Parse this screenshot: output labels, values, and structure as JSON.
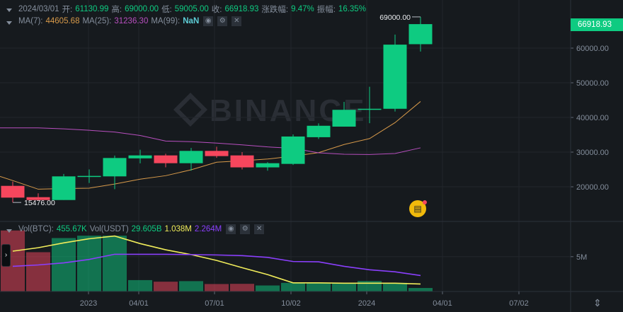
{
  "header": {
    "date": "2024/03/01",
    "open_label": "开:",
    "open": "61130.99",
    "high_label": "高:",
    "high": "69000.00",
    "low_label": "低:",
    "low": "59005.00",
    "close_label": "收:",
    "close": "66918.93",
    "change_label": "涨跌幅:",
    "change": "9.47%",
    "amplitude_label": "振幅:",
    "amplitude": "16.35%"
  },
  "ma_legend": {
    "ma7_label": "MA(7):",
    "ma7": "44605.68",
    "ma25_label": "MA(25):",
    "ma25": "31236.30",
    "ma99_label": "MA(99):",
    "ma99": "NaN"
  },
  "vol_legend": {
    "label": "Vol(BTC):",
    "btc": "455.67K",
    "usdt_label": "Vol(USDT)",
    "usdt": "29.605B",
    "ma1": "1.038M",
    "ma2": "2.264M"
  },
  "icons": [
    "eye-icon",
    "gear-icon",
    "close-icon",
    "chevron-right-icon",
    "scale-icon",
    "news-badge-icon"
  ],
  "last_price_tag": "66918.93",
  "max_label": "69000.00",
  "min_label": "15476.00",
  "watermark": "BINANCE",
  "colors": {
    "up": "#0ecb81",
    "down": "#f6465d",
    "ma7": "#d89a4a",
    "ma25": "#b84fbf",
    "ma99": "#5ecdd6",
    "vol_ma1": "#f0ec5a",
    "vol_ma2": "#8a3ffc",
    "background": "#161a1e"
  },
  "chart_data": [
    {
      "type": "candlestick",
      "interval": "monthly",
      "y_ticks": [
        "20000.00",
        "30000.00",
        "40000.00",
        "50000.00",
        "60000.00"
      ],
      "ylim": [
        15000,
        70000
      ],
      "grid": true,
      "candles": [
        {
          "o": 20265,
          "h": 21500,
          "l": 15476,
          "c": 16870
        },
        {
          "o": 17000,
          "h": 18100,
          "l": 16000,
          "c": 16180
        },
        {
          "o": 16180,
          "h": 23700,
          "l": 16200,
          "c": 23000
        },
        {
          "o": 23000,
          "h": 25000,
          "l": 21100,
          "c": 23130
        },
        {
          "o": 23000,
          "h": 29000,
          "l": 19300,
          "c": 28300
        },
        {
          "o": 28200,
          "h": 30700,
          "l": 26750,
          "c": 29050
        },
        {
          "o": 29050,
          "h": 29550,
          "l": 25600,
          "c": 26800
        },
        {
          "o": 26800,
          "h": 31200,
          "l": 24650,
          "c": 30350
        },
        {
          "o": 30350,
          "h": 31550,
          "l": 28350,
          "c": 28850
        },
        {
          "o": 29050,
          "h": 30000,
          "l": 25000,
          "c": 25600
        },
        {
          "o": 25600,
          "h": 27100,
          "l": 24650,
          "c": 26800
        },
        {
          "o": 26600,
          "h": 35100,
          "l": 26300,
          "c": 34500
        },
        {
          "o": 34300,
          "h": 38300,
          "l": 33800,
          "c": 37600
        },
        {
          "o": 37350,
          "h": 44500,
          "l": 37350,
          "c": 42200
        },
        {
          "o": 42300,
          "h": 48850,
          "l": 38350,
          "c": 42500
        },
        {
          "o": 42500,
          "h": 63900,
          "l": 41700,
          "c": 61000
        },
        {
          "o": 61130.99,
          "h": 69000,
          "l": 59005,
          "c": 66918.93
        }
      ],
      "series": [
        {
          "name": "MA(7)",
          "values": [
            21800,
            19300,
            19500,
            19600,
            20800,
            22200,
            23200,
            24900,
            27100,
            27500,
            28000,
            28850,
            29850,
            32200,
            33900,
            38500,
            44605.68
          ]
        },
        {
          "name": "MA(25)",
          "values": [
            37000,
            37000,
            36700,
            36300,
            35800,
            34800,
            33200,
            33000,
            32600,
            32100,
            31500,
            31100,
            29800,
            29400,
            29300,
            29600,
            31236.3
          ]
        }
      ]
    },
    {
      "type": "bar",
      "name": "Vol(BTC)",
      "y_ticks": [
        "5M"
      ],
      "x_ticks": [
        "2023",
        "04/01",
        "07/01",
        "10/02",
        "2024",
        "04/01",
        "07/02"
      ],
      "values": [
        8.8,
        5.65,
        7.7,
        8.05,
        8.05,
        1.6,
        1.37,
        1.45,
        1.03,
        1.06,
        0.82,
        1.2,
        1.2,
        1.2,
        1.47,
        1.2,
        0.456
      ],
      "unit": "M",
      "series": [
        {
          "values": [
            5.8,
            6.3,
            7.0,
            7.6,
            8.0,
            6.9,
            6.0,
            5.3,
            4.45,
            3.4,
            2.4,
            1.2,
            1.2,
            1.15,
            1.15,
            1.15,
            1.038
          ]
        },
        {
          "values": [
            3.6,
            3.8,
            4.1,
            4.6,
            5.35,
            5.35,
            5.35,
            5.3,
            5.25,
            5.15,
            4.9,
            4.3,
            4.25,
            3.6,
            3.1,
            2.8,
            2.264
          ]
        }
      ]
    }
  ]
}
